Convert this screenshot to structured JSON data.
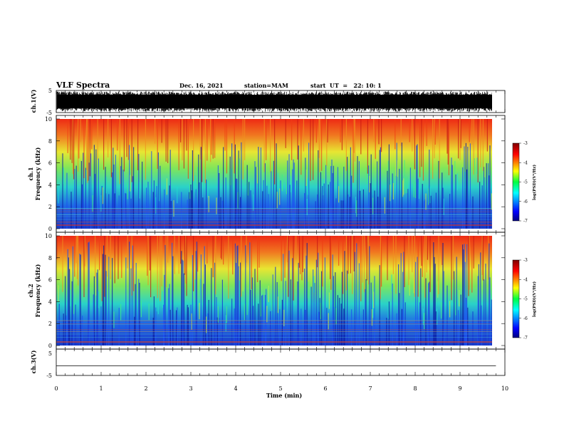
{
  "header": {
    "title": "VLF Spectra",
    "date": "Dec. 16, 2021",
    "station": "station=MAM",
    "start": "start  UT  =   22: 10: 1"
  },
  "chart_data": [
    {
      "type": "line",
      "ylabel": "ch.1(V)",
      "ylim": [
        -5,
        5
      ],
      "yticks": [
        "5",
        "-5"
      ],
      "xlim": [
        0,
        10
      ],
      "description_color": "#000000"
    },
    {
      "type": "heatmap",
      "ylabel": "ch.1\nFrequency (kHz)",
      "ylim": [
        0,
        10
      ],
      "yticks": [
        "10",
        "8",
        "6",
        "4",
        "2",
        "0"
      ],
      "colorbar": {
        "ticks": [
          "-3",
          "-4",
          "-5",
          "-6",
          "-7"
        ],
        "label": "log(PSD)(V²/Hz)",
        "range": [
          -7,
          -3
        ]
      }
    },
    {
      "type": "heatmap",
      "ylabel": "ch.2\nFrequency (kHz)",
      "ylim": [
        0,
        10
      ],
      "yticks": [
        "10",
        "8",
        "6",
        "4",
        "2",
        "0"
      ],
      "colorbar": {
        "ticks": [
          "-3",
          "-4",
          "-5",
          "-6",
          "-7"
        ],
        "label": "log(PSD)(V²/Hz)",
        "range": [
          -7,
          -3
        ]
      }
    },
    {
      "type": "line",
      "ylabel": "ch.3(V)",
      "ylim": [
        -5,
        5
      ],
      "yticks": [
        "5",
        "-5"
      ],
      "x": [
        0,
        9.8
      ],
      "y": [
        -1.2,
        -1.2
      ]
    }
  ],
  "xaxis": {
    "label": "Time (min)",
    "ticks": [
      "0",
      "1",
      "2",
      "3",
      "4",
      "5",
      "6",
      "7",
      "8",
      "9",
      "10"
    ],
    "xlim": [
      0,
      10
    ],
    "data_end": 9.8
  }
}
